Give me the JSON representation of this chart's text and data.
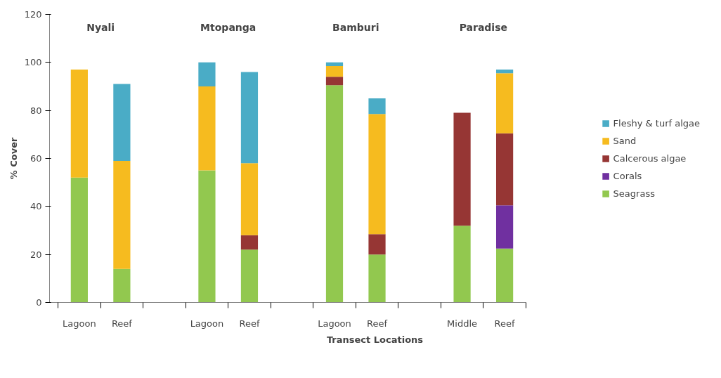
{
  "chart_data": {
    "type": "bar",
    "stacked": true,
    "xlabel": "Transect Locations",
    "ylabel": "% Cover",
    "categories": [
      "Lagoon",
      "Reef",
      null,
      "Lagoon",
      "Reef",
      null,
      "Lagoon",
      "Reef",
      null,
      "Middle",
      "Reef"
    ],
    "annotations": [
      "Nyali",
      "Mtopanga",
      "Bamburi",
      "Paradise"
    ],
    "series": [
      {
        "name": "Seagrass",
        "color": "#92c84f",
        "values": [
          52,
          14,
          null,
          55,
          22,
          null,
          90.5,
          20,
          null,
          32,
          22.5
        ]
      },
      {
        "name": "Corals",
        "color": "#7030a0",
        "values": [
          null,
          null,
          null,
          null,
          null,
          null,
          null,
          null,
          null,
          null,
          18
        ]
      },
      {
        "name": "Calcerous algae",
        "color": "#963634",
        "values": [
          null,
          null,
          null,
          null,
          6,
          null,
          3.5,
          8.5,
          null,
          47,
          30
        ]
      },
      {
        "name": "Sand",
        "color": "#f6bb1f",
        "values": [
          45,
          45,
          null,
          35,
          30,
          null,
          4.5,
          50,
          null,
          null,
          25
        ]
      },
      {
        "name": "Fleshy & turf algae",
        "color": "#4aacc6",
        "values": [
          null,
          32,
          null,
          10,
          38,
          null,
          1.5,
          6.5,
          null,
          null,
          1.5
        ]
      }
    ],
    "ylim": [
      0,
      120
    ],
    "yticks": [
      0,
      20,
      40,
      60,
      80,
      100,
      120
    ],
    "grid": false,
    "legend": "right"
  }
}
